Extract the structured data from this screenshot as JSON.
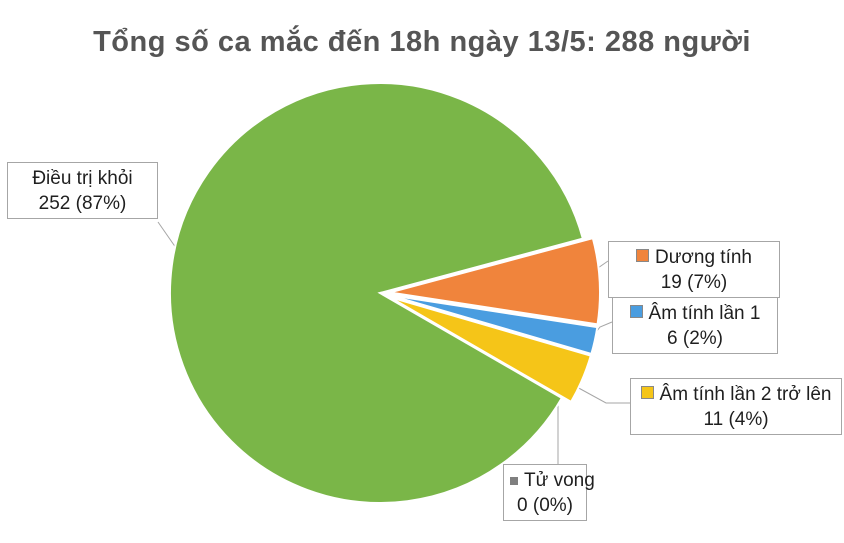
{
  "chart_data": {
    "type": "pie",
    "title": "Tổng số ca mắc đến 18h ngày 13/5: 288 người",
    "total": 288,
    "slices": [
      {
        "name": "Điều trị khỏi",
        "value": 252,
        "percent_label": "252 (87%)",
        "color": "#7ab648"
      },
      {
        "name": "Dương tính",
        "value": 19,
        "percent_label": "19 (7%)",
        "color": "#f0843c"
      },
      {
        "name": "Âm tính lần 1",
        "value": 6,
        "percent_label": "6 (2%)",
        "color": "#4a9de0"
      },
      {
        "name": "Âm tính lần 2 trở lên",
        "value": 11,
        "percent_label": "11 (4%)",
        "color": "#f5c518"
      },
      {
        "name": "Tử vong",
        "value": 0,
        "percent_label": "0 (0%)",
        "color": "#7f7f7f"
      }
    ]
  }
}
